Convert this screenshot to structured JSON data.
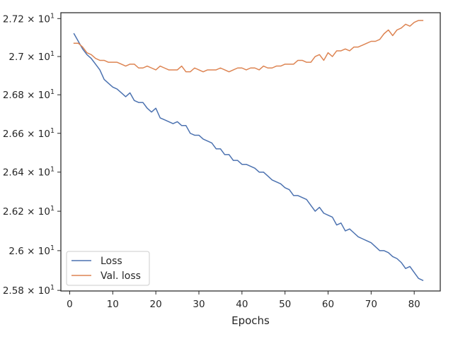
{
  "chart_data": {
    "type": "line",
    "xlabel": "Epochs",
    "ylabel": "",
    "xlim": [
      -2.05,
      86.05
    ],
    "ylim": [
      25.797,
      27.231
    ],
    "y_scale": "log",
    "x_ticks": [
      0,
      10,
      20,
      30,
      40,
      50,
      60,
      70,
      80
    ],
    "x_tick_labels": [
      "0",
      "10",
      "20",
      "30",
      "40",
      "50",
      "60",
      "70",
      "80"
    ],
    "y_ticks": [
      25.8,
      26.0,
      26.2,
      26.4,
      26.6,
      26.8,
      27.0,
      27.2
    ],
    "y_tick_labels": [
      {
        "mantissa": "2.58",
        "base": "10",
        "exp": "1"
      },
      {
        "mantissa": "2.6",
        "base": "10",
        "exp": "1"
      },
      {
        "mantissa": "2.62",
        "base": "10",
        "exp": "1"
      },
      {
        "mantissa": "2.64",
        "base": "10",
        "exp": "1"
      },
      {
        "mantissa": "2.66",
        "base": "10",
        "exp": "1"
      },
      {
        "mantissa": "2.68",
        "base": "10",
        "exp": "1"
      },
      {
        "mantissa": "2.7",
        "base": "10",
        "exp": "1"
      },
      {
        "mantissa": "2.72",
        "base": "10",
        "exp": "1"
      }
    ],
    "grid": false,
    "legend_position": "lower-left",
    "x": [
      1,
      2,
      3,
      4,
      5,
      6,
      7,
      8,
      9,
      10,
      11,
      12,
      13,
      14,
      15,
      16,
      17,
      18,
      19,
      20,
      21,
      22,
      23,
      24,
      25,
      26,
      27,
      28,
      29,
      30,
      31,
      32,
      33,
      34,
      35,
      36,
      37,
      38,
      39,
      40,
      41,
      42,
      43,
      44,
      45,
      46,
      47,
      48,
      49,
      50,
      51,
      52,
      53,
      54,
      55,
      56,
      57,
      58,
      59,
      60,
      61,
      62,
      63,
      64,
      65,
      66,
      67,
      68,
      69,
      70,
      71,
      72,
      73,
      74,
      75,
      76,
      77,
      78,
      79,
      80,
      81,
      82
    ],
    "series": [
      {
        "name": "Loss",
        "color": "#4c72b0",
        "values": [
          27.12,
          27.08,
          27.04,
          27.01,
          26.99,
          26.96,
          26.93,
          26.88,
          26.86,
          26.84,
          26.83,
          26.81,
          26.79,
          26.81,
          26.77,
          26.76,
          26.76,
          26.73,
          26.71,
          26.73,
          26.68,
          26.67,
          26.66,
          26.65,
          26.66,
          26.64,
          26.64,
          26.6,
          26.59,
          26.59,
          26.57,
          26.56,
          26.55,
          26.52,
          26.52,
          26.49,
          26.49,
          26.46,
          26.46,
          26.44,
          26.44,
          26.43,
          26.42,
          26.4,
          26.4,
          26.38,
          26.36,
          26.35,
          26.34,
          26.32,
          26.31,
          26.28,
          26.28,
          26.27,
          26.26,
          26.23,
          26.2,
          26.22,
          26.19,
          26.18,
          26.17,
          26.13,
          26.14,
          26.1,
          26.11,
          26.09,
          26.07,
          26.06,
          26.05,
          26.04,
          26.02,
          26.0,
          26.0,
          25.99,
          25.97,
          25.96,
          25.94,
          25.91,
          25.92,
          25.89,
          25.86,
          25.85
        ]
      },
      {
        "name": "Val. loss",
        "color": "#dd8452",
        "values": [
          27.07,
          27.07,
          27.05,
          27.02,
          27.01,
          26.99,
          26.98,
          26.98,
          26.97,
          26.97,
          26.97,
          26.96,
          26.95,
          26.96,
          26.96,
          26.94,
          26.94,
          26.95,
          26.94,
          26.93,
          26.95,
          26.94,
          26.93,
          26.93,
          26.93,
          26.95,
          26.92,
          26.92,
          26.94,
          26.93,
          26.92,
          26.93,
          26.93,
          26.93,
          26.94,
          26.93,
          26.92,
          26.93,
          26.94,
          26.94,
          26.93,
          26.94,
          26.94,
          26.93,
          26.95,
          26.94,
          26.94,
          26.95,
          26.95,
          26.96,
          26.96,
          26.96,
          26.98,
          26.98,
          26.97,
          26.97,
          27.0,
          27.01,
          26.98,
          27.02,
          27.0,
          27.03,
          27.03,
          27.04,
          27.03,
          27.05,
          27.05,
          27.06,
          27.07,
          27.08,
          27.08,
          27.09,
          27.12,
          27.14,
          27.11,
          27.14,
          27.15,
          27.17,
          27.16,
          27.18,
          27.19,
          27.19
        ]
      }
    ]
  }
}
